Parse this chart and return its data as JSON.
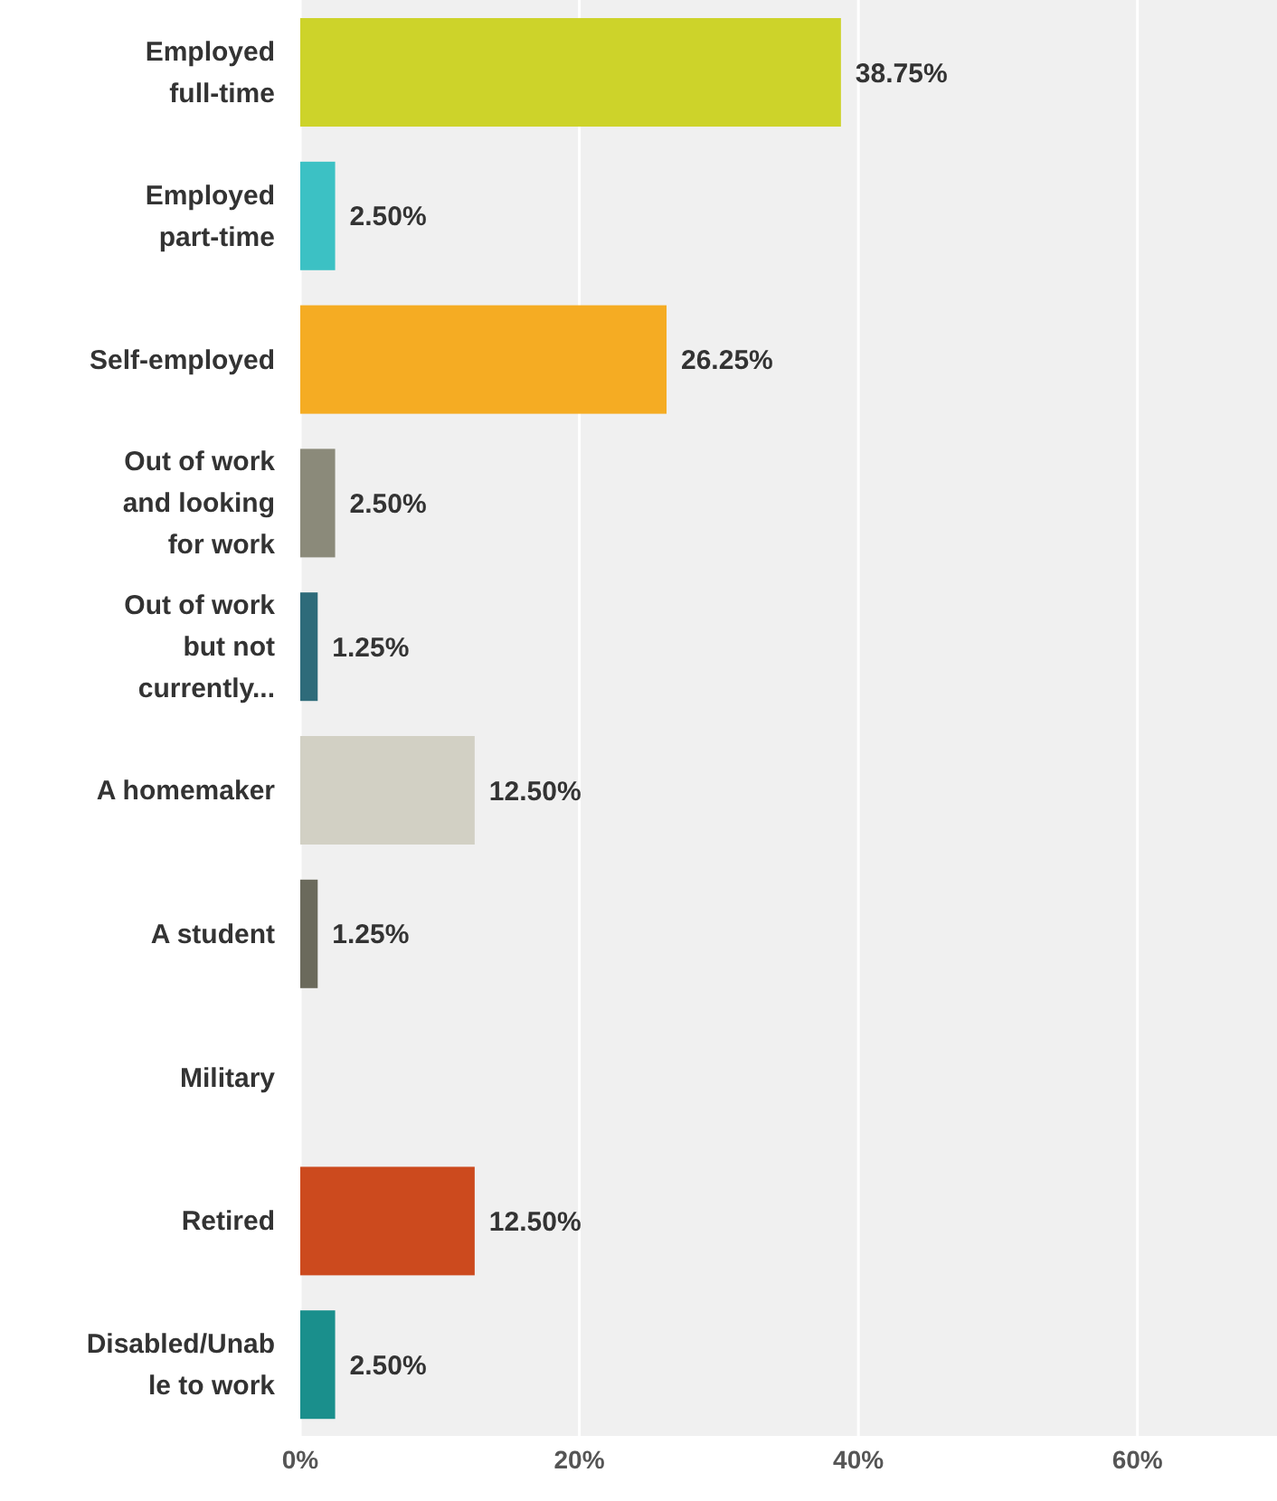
{
  "chart_data": {
    "type": "bar",
    "orientation": "horizontal",
    "categories": [
      "Employed full-time",
      "Employed part-time",
      "Self-employed",
      "Out of work and looking for work",
      "Out of work but not currently...",
      "A homemaker",
      "A student",
      "Military",
      "Retired",
      "Disabled/Unable to work"
    ],
    "values": [
      38.75,
      2.5,
      26.25,
      2.5,
      1.25,
      12.5,
      1.25,
      0,
      12.5,
      2.5
    ],
    "colors": [
      "#cdd32a",
      "#3cc1c4",
      "#f5ac23",
      "#8b8a7a",
      "#2e6b7a",
      "#d2d0c4",
      "#6b6a5c",
      "#999999",
      "#cc4a1e",
      "#1a8f8c"
    ],
    "value_labels": [
      "38.75%",
      "2.50%",
      "26.25%",
      "2.50%",
      "1.25%",
      "12.50%",
      "1.25%",
      null,
      "12.50%",
      "2.50%"
    ],
    "xlim": [
      0,
      70
    ],
    "xticks": [
      {
        "value": 0,
        "label": "0%"
      },
      {
        "value": 20,
        "label": "20%"
      },
      {
        "value": 40,
        "label": "40%"
      },
      {
        "value": 60,
        "label": "60%"
      }
    ],
    "grid": "x"
  }
}
